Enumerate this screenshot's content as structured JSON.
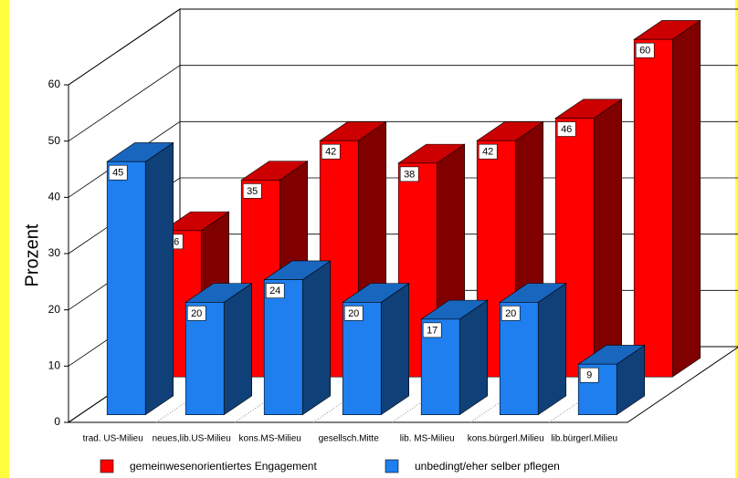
{
  "chart_data": {
    "type": "bar",
    "y_label": "Prozent",
    "categories": [
      "trad. US-Milieu",
      "neues,lib.US-Milieu",
      "kons.MS-Milieu",
      "gesellsch.Mitte",
      "lib. MS-Milieu",
      "kons.bürgerl.Milieu",
      "lib.bürgerl.Milieu"
    ],
    "series": [
      {
        "name": "gemeinwesenorientiertes Engagement",
        "color": "#ff0000",
        "values": [
          26,
          35,
          42,
          38,
          42,
          46,
          60
        ]
      },
      {
        "name": "unbedingt/eher selber pflegen",
        "color": "#1f7fef",
        "values": [
          45,
          20,
          24,
          20,
          17,
          20,
          9
        ]
      }
    ],
    "ylim": [
      0,
      60
    ],
    "yticks": [
      0,
      10,
      20,
      30,
      40,
      50,
      60
    ],
    "grid": true,
    "legend": "bottom"
  }
}
